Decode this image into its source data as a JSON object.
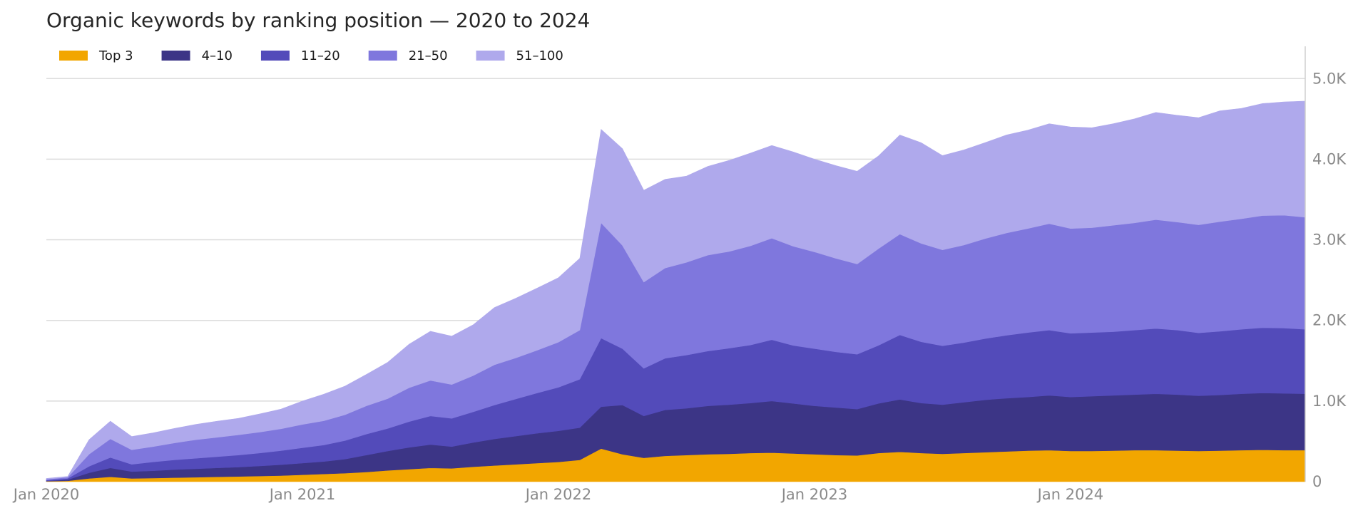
{
  "chart_data": {
    "type": "area",
    "stacked": true,
    "title": "Organic keywords by ranking position — 2020 to 2024",
    "xlabel": "",
    "ylabel": "",
    "x": [
      "2020-01",
      "2020-02",
      "2020-03",
      "2020-04",
      "2020-05",
      "2020-06",
      "2020-07",
      "2020-08",
      "2020-09",
      "2020-10",
      "2020-11",
      "2020-12",
      "2021-01",
      "2021-02",
      "2021-03",
      "2021-04",
      "2021-05",
      "2021-06",
      "2021-07",
      "2021-08",
      "2021-09",
      "2021-10",
      "2021-11",
      "2021-12",
      "2022-01",
      "2022-02",
      "2022-03",
      "2022-04",
      "2022-05",
      "2022-06",
      "2022-07",
      "2022-08",
      "2022-09",
      "2022-10",
      "2022-11",
      "2022-12",
      "2023-01",
      "2023-02",
      "2023-03",
      "2023-04",
      "2023-05",
      "2023-06",
      "2023-07",
      "2023-08",
      "2023-09",
      "2023-10",
      "2023-11",
      "2023-12",
      "2024-01",
      "2024-02",
      "2024-03",
      "2024-04",
      "2024-05",
      "2024-06",
      "2024-07",
      "2024-08",
      "2024-09",
      "2024-10",
      "2024-11",
      "2024-12"
    ],
    "x_ticks": [
      "Jan 2020",
      "Jan 2021",
      "Jan 2022",
      "Jan 2023",
      "Jan 2024"
    ],
    "y_ticks": [
      "0",
      "1.0K",
      "2.0K",
      "3.0K",
      "4.0K",
      "5.0K"
    ],
    "ylim": [
      0,
      5400
    ],
    "y_axis_side": "right",
    "grid": true,
    "legend_position": "top-left",
    "series": [
      {
        "name": "Top 3",
        "color": "#f2a600",
        "values": [
          5,
          10,
          40,
          60,
          40,
          45,
          50,
          55,
          60,
          65,
          70,
          75,
          85,
          95,
          105,
          120,
          140,
          155,
          170,
          165,
          185,
          200,
          215,
          230,
          245,
          270,
          410,
          340,
          295,
          320,
          330,
          340,
          345,
          355,
          360,
          350,
          340,
          330,
          325,
          355,
          370,
          355,
          345,
          355,
          365,
          375,
          385,
          390,
          380,
          380,
          385,
          390,
          390,
          385,
          380,
          385,
          390,
          395,
          390,
          390
        ]
      },
      {
        "name": "4–10",
        "color": "#3c3586",
        "values": [
          5,
          15,
          70,
          110,
          85,
          90,
          100,
          105,
          110,
          115,
          125,
          135,
          145,
          155,
          175,
          210,
          240,
          270,
          290,
          270,
          300,
          330,
          350,
          370,
          385,
          400,
          520,
          610,
          520,
          570,
          580,
          600,
          610,
          620,
          640,
          620,
          600,
          590,
          575,
          615,
          650,
          620,
          610,
          630,
          650,
          660,
          665,
          680,
          670,
          680,
          685,
          690,
          700,
          695,
          685,
          690,
          700,
          705,
          705,
          700
        ]
      },
      {
        "name": "11–20",
        "color": "#534bba",
        "values": [
          10,
          15,
          80,
          130,
          90,
          110,
          120,
          130,
          140,
          150,
          160,
          175,
          190,
          205,
          230,
          260,
          280,
          320,
          355,
          350,
          380,
          420,
          460,
          500,
          540,
          600,
          850,
          700,
          590,
          640,
          660,
          680,
          700,
          720,
          760,
          720,
          710,
          690,
          680,
          720,
          800,
          760,
          730,
          740,
          760,
          780,
          800,
          810,
          790,
          790,
          790,
          800,
          810,
          800,
          780,
          790,
          800,
          810,
          810,
          800
        ]
      },
      {
        "name": "21–50",
        "color": "#7f77dd",
        "values": [
          10,
          15,
          150,
          230,
          180,
          190,
          210,
          230,
          240,
          250,
          260,
          270,
          290,
          300,
          320,
          350,
          370,
          420,
          440,
          420,
          450,
          500,
          510,
          530,
          560,
          610,
          1430,
          1280,
          1070,
          1120,
          1150,
          1190,
          1200,
          1230,
          1260,
          1230,
          1200,
          1160,
          1120,
          1200,
          1250,
          1220,
          1190,
          1210,
          1240,
          1270,
          1290,
          1320,
          1300,
          1300,
          1320,
          1330,
          1350,
          1340,
          1340,
          1360,
          1370,
          1390,
          1400,
          1390
        ]
      },
      {
        "name": "51–100",
        "color": "#afa9ec",
        "values": [
          10,
          10,
          180,
          220,
          165,
          170,
          180,
          190,
          200,
          205,
          225,
          245,
          290,
          330,
          355,
          390,
          450,
          540,
          610,
          600,
          630,
          710,
          740,
          770,
          800,
          890,
          1160,
          1200,
          1140,
          1100,
          1070,
          1100,
          1130,
          1150,
          1150,
          1170,
          1150,
          1150,
          1150,
          1150,
          1230,
          1250,
          1170,
          1180,
          1190,
          1215,
          1220,
          1240,
          1260,
          1240,
          1260,
          1290,
          1330,
          1325,
          1330,
          1375,
          1370,
          1390,
          1405,
          1440
        ]
      }
    ]
  }
}
